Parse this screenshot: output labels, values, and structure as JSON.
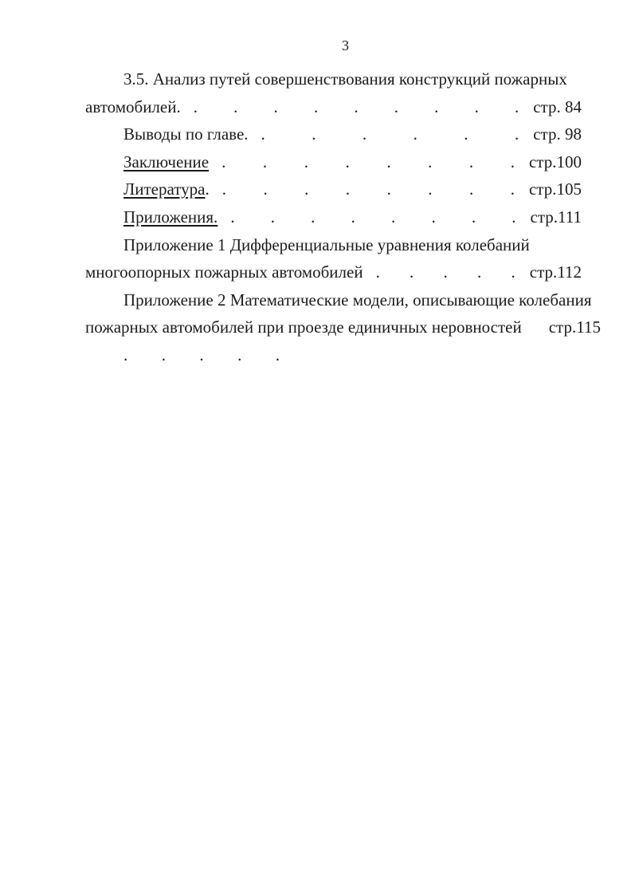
{
  "page": {
    "number": "3"
  },
  "toc": {
    "lines": [
      {
        "text": "3.5. Анализ путей совершенствования конструкций пожарных"
      },
      {
        "label": "автомобилей.",
        "dots": ". . . . . . . . .",
        "page": "стр. 84"
      },
      {
        "label": "Выводы по главе.",
        "dots": ". . . . . .",
        "page": "стр. 98"
      },
      {
        "label": "Заключение",
        "dots": ". . . . . . . .",
        "page": "стр.100"
      },
      {
        "label": "Литература",
        "after": ".",
        "dots": ". . . . . . . .",
        "page": "стр.105"
      },
      {
        "label": "Приложения.",
        "dots": ". . . . . . . .",
        "page": "стр.111"
      },
      {
        "text": "Приложение 1 Дифференциальные уравнения колебаний"
      },
      {
        "label": "многоопорных пожарных автомобилей",
        "dots": ". . . . .",
        "page": "стр.112"
      },
      {
        "text": "Приложение 2 Математические модели, описывающие колебания"
      },
      {
        "label": "пожарных автомобилей при проезде единичных неровностей",
        "dots": ".",
        "page": "стр.115"
      },
      {
        "dots": ". . . . ."
      }
    ]
  }
}
